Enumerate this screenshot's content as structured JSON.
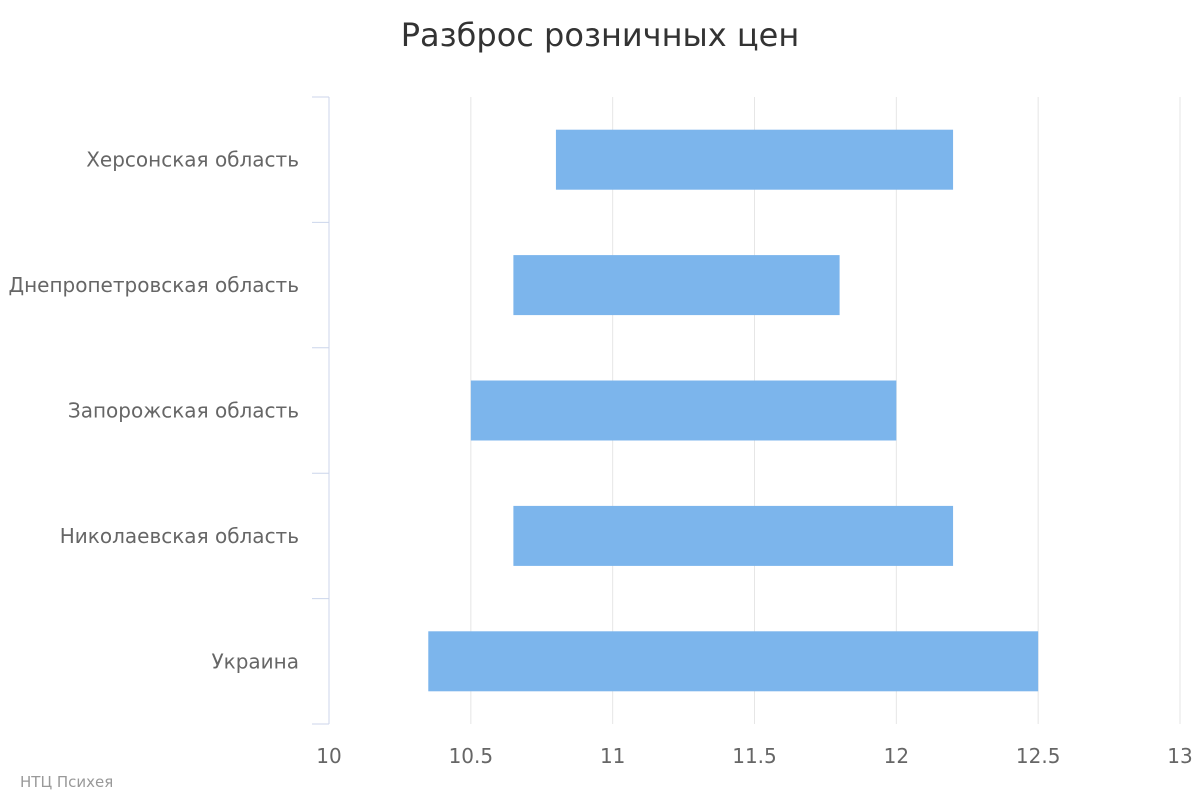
{
  "chart_data": {
    "type": "bar",
    "orientation": "horizontal",
    "variant": "range",
    "title": "Разброс розничных цен",
    "categories": [
      "Херсонская область",
      "Днепропетровская область",
      "Запорожская область",
      "Николаевская область",
      "Украина"
    ],
    "series": [
      {
        "low": [
          10.8,
          10.65,
          10.5,
          10.65,
          10.35
        ],
        "high": [
          12.2,
          11.8,
          12.0,
          12.2,
          12.5
        ],
        "color": "#7cb5ec"
      }
    ],
    "xlim": [
      10,
      13
    ],
    "xticks": [
      "10",
      "10.5",
      "11",
      "11.5",
      "12",
      "12.5",
      "13"
    ],
    "grid": "vertical",
    "legend": "none"
  },
  "credits": "НТЦ Психея"
}
